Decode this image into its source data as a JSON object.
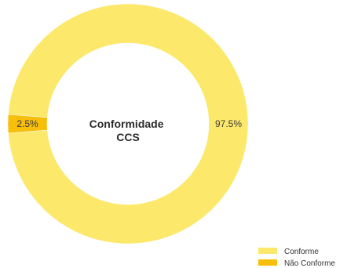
{
  "chart_data": {
    "type": "pie",
    "variant": "donut",
    "title": "",
    "center_title": [
      "Conformidade",
      "CCS"
    ],
    "categories": [
      "Conforme",
      "Não Conforme"
    ],
    "values": [
      97.5,
      2.5
    ],
    "labels": [
      "97.5%",
      "2.5%"
    ],
    "colors": [
      "#FCE86A",
      "#F7BE0B"
    ],
    "legend": {
      "placement": "bottom-right",
      "entries": [
        "Conforme",
        "Não Conforme"
      ]
    }
  }
}
